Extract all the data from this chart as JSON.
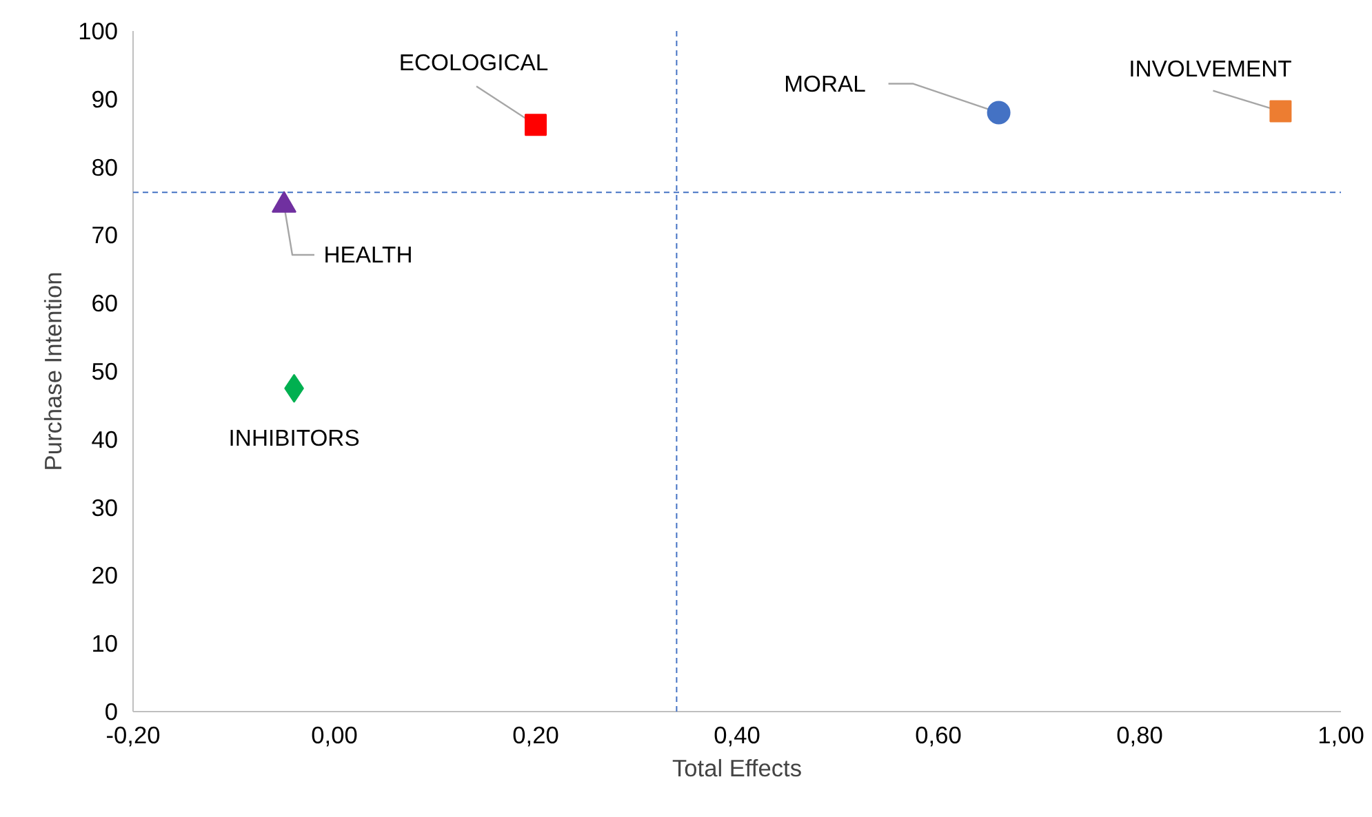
{
  "chart_data": {
    "type": "scatter",
    "xlabel": "Total Effects",
    "ylabel": "Purchase Intention",
    "xlim": [
      -0.2,
      1.0
    ],
    "xticks": [
      {
        "value": -0.2,
        "label": "-0,20"
      },
      {
        "value": 0,
        "label": "0,00"
      },
      {
        "value": 0.2,
        "label": "0,20"
      },
      {
        "value": 0.4,
        "label": "0,40"
      },
      {
        "value": 0.6,
        "label": "0,60"
      },
      {
        "value": 0.8,
        "label": "0,80"
      },
      {
        "value": 1.0,
        "label": "1,00"
      }
    ],
    "ylim": [
      0,
      100
    ],
    "yticks": [
      0,
      10,
      20,
      30,
      40,
      50,
      60,
      70,
      80,
      90,
      100
    ],
    "grid": false,
    "series": [
      {
        "name": "ECOLOGICAL",
        "color": "#ff0000",
        "marker": "square",
        "x": [
          0.2
        ],
        "values": [
          86.2
        ]
      },
      {
        "name": "MORAL",
        "color": "#4472c4",
        "marker": "circle",
        "x": [
          0.66
        ],
        "values": [
          88.0
        ]
      },
      {
        "name": "INVOLVEMENT",
        "color": "#ed7d31",
        "marker": "square",
        "x": [
          0.94
        ],
        "values": [
          88.2
        ]
      },
      {
        "name": "HEALTH",
        "color": "#7030a0",
        "marker": "triangle",
        "x": [
          -0.05
        ],
        "values": [
          74.4
        ]
      },
      {
        "name": "INHIBITORS",
        "color": "#00b050",
        "marker": "diamond",
        "x": [
          -0.04
        ],
        "values": [
          47.5
        ]
      }
    ],
    "ref_lines": [
      {
        "axis": "x",
        "value": 0.34,
        "color": "#4472c4",
        "line_style": "dashed"
      },
      {
        "axis": "y",
        "value": 76.3,
        "color": "#4472c4",
        "line_style": "dashed"
      }
    ]
  }
}
